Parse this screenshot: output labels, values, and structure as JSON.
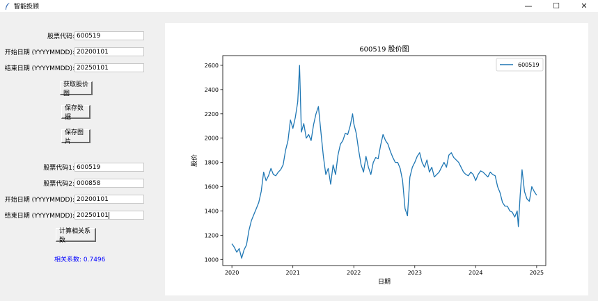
{
  "window": {
    "title": "智能投顾",
    "minimize_glyph": "—",
    "maximize_glyph": "☐",
    "close_glyph": "✕",
    "icon": "feather-icon"
  },
  "form1": {
    "code_label": "股票代码:",
    "code_value": "600519",
    "start_label": "开始日期 (YYYYMMDD):",
    "start_value": "20200101",
    "end_label": "结束日期 (YYYYMMDD):",
    "end_value": "20250101"
  },
  "buttons": {
    "fetch_chart": "获取股价图",
    "save_data": "保存数据",
    "save_image": "保存图片",
    "compute_corr": "计算相关系数"
  },
  "form2": {
    "code1_label": "股票代码1:",
    "code1_value": "600519",
    "code2_label": "股票代码2:",
    "code2_value": "000858",
    "start_label": "开始日期 (YYYYMMDD):",
    "start_value": "20200101",
    "end_label": "结束日期 (YYYYMMDD):",
    "end_value": "20250101"
  },
  "result": {
    "text": "相关系数: 0.7496",
    "color": "#0000ff"
  },
  "chart_data": {
    "type": "line",
    "title": "600519 股价图",
    "xlabel": "日期",
    "ylabel": "股价",
    "xlim": [
      2019.85,
      2025.15
    ],
    "ylim": [
      950,
      2680
    ],
    "xticks": [
      2020,
      2021,
      2022,
      2023,
      2024,
      2025
    ],
    "xtick_labels": [
      "2020",
      "2021",
      "2022",
      "2023",
      "2024",
      "2025"
    ],
    "yticks": [
      1000,
      1200,
      1400,
      1600,
      1800,
      2000,
      2200,
      2400,
      2600
    ],
    "ytick_labels": [
      "1000",
      "1200",
      "1400",
      "1600",
      "1800",
      "2000",
      "2200",
      "2400",
      "2600"
    ],
    "grid": false,
    "legend": "top-right",
    "series": [
      {
        "name": "600519",
        "color": "#1f77b4",
        "x": [
          2020.0,
          2020.04,
          2020.08,
          2020.12,
          2020.16,
          2020.2,
          2020.24,
          2020.28,
          2020.32,
          2020.36,
          2020.4,
          2020.44,
          2020.48,
          2020.52,
          2020.56,
          2020.6,
          2020.64,
          2020.68,
          2020.72,
          2020.76,
          2020.8,
          2020.84,
          2020.88,
          2020.92,
          2020.96,
          2021.0,
          2021.04,
          2021.08,
          2021.11,
          2021.14,
          2021.18,
          2021.22,
          2021.26,
          2021.3,
          2021.34,
          2021.38,
          2021.42,
          2021.46,
          2021.5,
          2021.54,
          2021.58,
          2021.62,
          2021.66,
          2021.7,
          2021.74,
          2021.78,
          2021.82,
          2021.86,
          2021.9,
          2021.94,
          2021.98,
          2022.0,
          2022.04,
          2022.08,
          2022.12,
          2022.16,
          2022.2,
          2022.24,
          2022.28,
          2022.32,
          2022.36,
          2022.4,
          2022.44,
          2022.48,
          2022.52,
          2022.56,
          2022.6,
          2022.64,
          2022.68,
          2022.72,
          2022.76,
          2022.8,
          2022.84,
          2022.88,
          2022.92,
          2022.96,
          2023.0,
          2023.04,
          2023.08,
          2023.12,
          2023.16,
          2023.2,
          2023.24,
          2023.28,
          2023.32,
          2023.36,
          2023.4,
          2023.44,
          2023.48,
          2023.52,
          2023.56,
          2023.6,
          2023.64,
          2023.68,
          2023.72,
          2023.76,
          2023.8,
          2023.84,
          2023.88,
          2023.92,
          2023.96,
          2024.0,
          2024.04,
          2024.08,
          2024.12,
          2024.16,
          2024.2,
          2024.24,
          2024.28,
          2024.32,
          2024.36,
          2024.4,
          2024.44,
          2024.48,
          2024.52,
          2024.56,
          2024.6,
          2024.64,
          2024.68,
          2024.7,
          2024.73,
          2024.76,
          2024.8,
          2024.84,
          2024.88,
          2024.92,
          2024.96,
          2025.0
        ],
        "y": [
          1130,
          1100,
          1060,
          1090,
          1010,
          1080,
          1120,
          1240,
          1320,
          1370,
          1420,
          1470,
          1560,
          1720,
          1650,
          1690,
          1750,
          1700,
          1690,
          1720,
          1740,
          1780,
          1900,
          1980,
          2150,
          2080,
          2170,
          2300,
          2600,
          2050,
          2120,
          2000,
          2030,
          1980,
          2110,
          2200,
          2260,
          2050,
          1850,
          1700,
          1750,
          1620,
          1780,
          1700,
          1860,
          1950,
          1980,
          2040,
          2030,
          2100,
          2200,
          2120,
          2040,
          1900,
          1780,
          1720,
          1850,
          1760,
          1700,
          1800,
          1840,
          1830,
          1940,
          2030,
          1980,
          1950,
          1890,
          1840,
          1800,
          1800,
          1750,
          1650,
          1420,
          1360,
          1680,
          1760,
          1800,
          1850,
          1880,
          1800,
          1760,
          1820,
          1720,
          1760,
          1680,
          1700,
          1720,
          1760,
          1800,
          1760,
          1860,
          1880,
          1840,
          1820,
          1800,
          1760,
          1720,
          1700,
          1690,
          1720,
          1700,
          1650,
          1700,
          1730,
          1720,
          1700,
          1680,
          1720,
          1700,
          1690,
          1600,
          1550,
          1470,
          1440,
          1440,
          1400,
          1390,
          1350,
          1400,
          1270,
          1530,
          1740,
          1560,
          1500,
          1480,
          1600,
          1560,
          1530
        ]
      }
    ]
  }
}
